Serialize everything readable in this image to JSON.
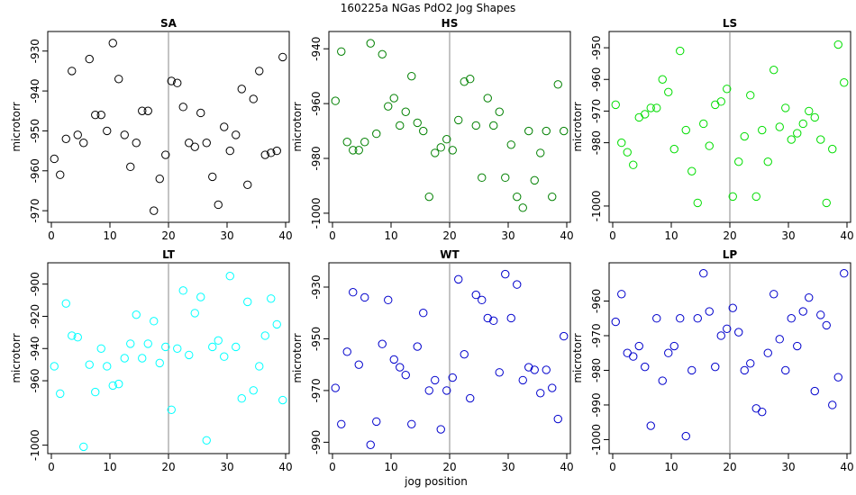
{
  "chart_data": {
    "type": "scatter",
    "title": "160225a   NGas PdO2 Jog Shapes",
    "xlabel": "jog position",
    "xlim": [
      0,
      40
    ],
    "x_ticks": [
      0,
      10,
      20,
      30,
      40
    ],
    "vline_x": 20,
    "marker": "open-circle",
    "panels": [
      {
        "name": "SA",
        "ylabel": "microtorr",
        "color": "#000000",
        "ylim": [
          -972,
          -926
        ],
        "y_ticks": [
          -930,
          -940,
          -950,
          -960,
          -970
        ],
        "x": [
          0.5,
          1.5,
          2.5,
          3.5,
          4.5,
          5.5,
          6.5,
          7.5,
          8.5,
          9.5,
          10.5,
          11.5,
          12.5,
          13.5,
          14.5,
          15.5,
          16.5,
          17.5,
          18.5,
          19.5,
          20.5,
          21.5,
          22.5,
          23.5,
          24.5,
          25.5,
          26.5,
          27.5,
          28.5,
          29.5,
          30.5,
          31.5,
          32.5,
          33.5,
          34.5,
          35.5,
          36.5,
          37.5,
          38.5,
          39.5
        ],
        "y": [
          -957,
          -961,
          -952,
          -935,
          -951,
          -953,
          -932,
          -946,
          -946,
          -950,
          -928,
          -937,
          -951,
          -959,
          -953,
          -945,
          -945,
          -970,
          -962,
          -956,
          -937.5,
          -938,
          -944,
          -953,
          -954,
          -945.5,
          -953,
          -961.5,
          -968.5,
          -949,
          -955,
          -951,
          -939.5,
          -963.5,
          -942,
          -935,
          -956,
          -955.5,
          -955,
          -931.5
        ]
      },
      {
        "name": "HS",
        "ylabel": "microtorr",
        "color": "#008000",
        "ylim": [
          -1002,
          -935
        ],
        "y_ticks": [
          -940,
          -960,
          -980,
          -1000
        ],
        "x": [
          0.5,
          1.5,
          2.5,
          3.5,
          4.5,
          5.5,
          6.5,
          7.5,
          8.5,
          9.5,
          10.5,
          11.5,
          12.5,
          13.5,
          14.5,
          15.5,
          16.5,
          17.5,
          18.5,
          19.5,
          20.5,
          21.5,
          22.5,
          23.5,
          24.5,
          25.5,
          26.5,
          27.5,
          28.5,
          29.5,
          30.5,
          31.5,
          32.5,
          33.5,
          34.5,
          35.5,
          36.5,
          37.5,
          38.5,
          39.5
        ],
        "y": [
          -959,
          -941,
          -974,
          -977,
          -977,
          -974,
          -938,
          -971,
          -942,
          -961,
          -958,
          -968,
          -963,
          -950,
          -967,
          -970,
          -994,
          -978,
          -976,
          -973,
          -977,
          -966,
          -952,
          -951,
          -968,
          -987,
          -958,
          -968,
          -963,
          -987,
          -975,
          -994,
          -998,
          -970,
          -988,
          -978,
          -970,
          -994,
          -953,
          -970
        ]
      },
      {
        "name": "LS",
        "ylabel": "microtorr",
        "color": "#00dd00",
        "ylim": [
          -1004,
          -946
        ],
        "y_ticks": [
          -950,
          -960,
          -970,
          -980,
          -1000
        ],
        "x": [
          0.5,
          1.5,
          2.5,
          3.5,
          4.5,
          5.5,
          6.5,
          7.5,
          8.5,
          9.5,
          10.5,
          11.5,
          12.5,
          13.5,
          14.5,
          15.5,
          16.5,
          17.5,
          18.5,
          19.5,
          20.5,
          21.5,
          22.5,
          23.5,
          24.5,
          25.5,
          26.5,
          27.5,
          28.5,
          29.5,
          30.5,
          31.5,
          32.5,
          33.5,
          34.5,
          35.5,
          36.5,
          37.5,
          38.5,
          39.5
        ],
        "y": [
          -968,
          -980,
          -983,
          -987,
          -972,
          -971,
          -969,
          -969,
          -960,
          -964,
          -982,
          -951,
          -976,
          -989,
          -999,
          -974,
          -981,
          -968,
          -967,
          -963,
          -997,
          -986,
          -978,
          -965,
          -997,
          -976,
          -986,
          -957,
          -975,
          -969,
          -979,
          -977,
          -974,
          -970,
          -972,
          -979,
          -999,
          -982,
          -949,
          -961
        ]
      },
      {
        "name": "LT",
        "ylabel": "microtorr",
        "color": "#00ffff",
        "ylim": [
          -1003,
          -889
        ],
        "y_ticks": [
          -900,
          -920,
          -940,
          -960,
          -1000
        ],
        "x": [
          0.5,
          1.5,
          2.5,
          3.5,
          4.5,
          5.5,
          6.5,
          7.5,
          8.5,
          9.5,
          10.5,
          11.5,
          12.5,
          13.5,
          14.5,
          15.5,
          16.5,
          17.5,
          18.5,
          19.5,
          20.5,
          21.5,
          22.5,
          23.5,
          24.5,
          25.5,
          26.5,
          27.5,
          28.5,
          29.5,
          30.5,
          31.5,
          32.5,
          33.5,
          34.5,
          35.5,
          36.5,
          37.5,
          38.5,
          39.5
        ],
        "y": [
          -951,
          -968,
          -912,
          -932,
          -933,
          -1001,
          -950,
          -967,
          -940,
          -951,
          -963,
          -962,
          -946,
          -937,
          -919,
          -946,
          -937,
          -923,
          -949,
          -939,
          -978,
          -940,
          -904,
          -944,
          -918,
          -908,
          -997,
          -939,
          -935,
          -945,
          -895,
          -939,
          -971,
          -911,
          -966,
          -951,
          -932,
          -909,
          -925,
          -972
        ]
      },
      {
        "name": "WT",
        "ylabel": "microtorr",
        "color": "#0000cc",
        "ylim": [
          -993,
          -922
        ],
        "y_ticks": [
          -930,
          -950,
          -970,
          -990
        ],
        "x": [
          0.5,
          1.5,
          2.5,
          3.5,
          4.5,
          5.5,
          6.5,
          7.5,
          8.5,
          9.5,
          10.5,
          11.5,
          12.5,
          13.5,
          14.5,
          15.5,
          16.5,
          17.5,
          18.5,
          19.5,
          20.5,
          21.5,
          22.5,
          23.5,
          24.5,
          25.5,
          26.5,
          27.5,
          28.5,
          29.5,
          30.5,
          31.5,
          32.5,
          33.5,
          34.5,
          35.5,
          36.5,
          37.5,
          38.5,
          39.5
        ],
        "y": [
          -969,
          -983,
          -955,
          -932,
          -960,
          -934,
          -991,
          -982,
          -952,
          -935,
          -958,
          -961,
          -964,
          -983,
          -953,
          -940,
          -970,
          -966,
          -985,
          -970,
          -965,
          -927,
          -956,
          -973,
          -933,
          -935,
          -942,
          -943,
          -963,
          -925,
          -942,
          -929,
          -966,
          -961,
          -962,
          -971,
          -962,
          -969,
          -981,
          -949
        ]
      },
      {
        "name": "LP",
        "ylabel": "microtorr",
        "color": "#0000cc",
        "ylim": [
          -1003,
          -950
        ],
        "y_ticks": [
          -960,
          -970,
          -980,
          -990,
          -1000
        ],
        "x": [
          0.5,
          1.5,
          2.5,
          3.5,
          4.5,
          5.5,
          6.5,
          7.5,
          8.5,
          9.5,
          10.5,
          11.5,
          12.5,
          13.5,
          14.5,
          15.5,
          16.5,
          17.5,
          18.5,
          19.5,
          20.5,
          21.5,
          22.5,
          23.5,
          24.5,
          25.5,
          26.5,
          27.5,
          28.5,
          29.5,
          30.5,
          31.5,
          32.5,
          33.5,
          34.5,
          35.5,
          36.5,
          37.5,
          38.5,
          39.5
        ],
        "y": [
          -966,
          -958,
          -975,
          -976,
          -973,
          -979,
          -996,
          -965,
          -983,
          -975,
          -973,
          -965,
          -999,
          -980,
          -965,
          -952,
          -963,
          -979,
          -970,
          -968,
          -962,
          -969,
          -980,
          -978,
          -991,
          -992,
          -975,
          -958,
          -971,
          -980,
          -965,
          -973,
          -963,
          -959,
          -986,
          -964,
          -967,
          -990,
          -982,
          -952
        ]
      }
    ]
  }
}
